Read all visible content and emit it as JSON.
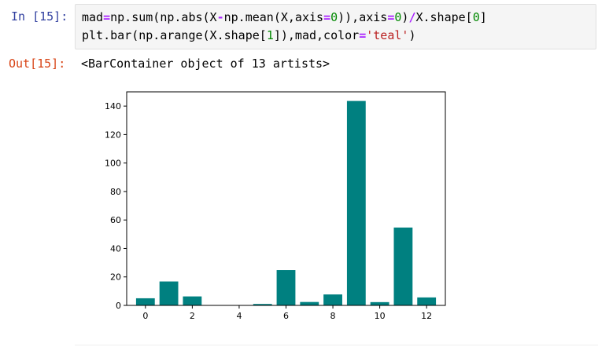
{
  "input_cell": {
    "prompt": "In [15]:",
    "code_line_1": [
      {
        "t": "mad",
        "k": "plain"
      },
      {
        "t": "=",
        "k": "op"
      },
      {
        "t": "np.sum(np.abs(X",
        "k": "plain"
      },
      {
        "t": "-",
        "k": "op"
      },
      {
        "t": "np.mean(X,axis",
        "k": "plain"
      },
      {
        "t": "=",
        "k": "op"
      },
      {
        "t": "0",
        "k": "num"
      },
      {
        "t": ")),axis",
        "k": "plain"
      },
      {
        "t": "=",
        "k": "op"
      },
      {
        "t": "0",
        "k": "num"
      },
      {
        "t": ")",
        "k": "plain"
      },
      {
        "t": "/",
        "k": "op"
      },
      {
        "t": "X.shape[",
        "k": "plain"
      },
      {
        "t": "0",
        "k": "num"
      },
      {
        "t": "]",
        "k": "plain"
      }
    ],
    "code_line_2": [
      {
        "t": "plt.bar(np.arange(X.shape[",
        "k": "plain"
      },
      {
        "t": "1",
        "k": "num"
      },
      {
        "t": "]),mad,color",
        "k": "plain"
      },
      {
        "t": "=",
        "k": "op"
      },
      {
        "t": "'teal'",
        "k": "str"
      },
      {
        "t": ")",
        "k": "plain"
      }
    ]
  },
  "output_cell": {
    "prompt": "Out[15]:",
    "text": "<BarContainer object of 13 artists>"
  },
  "colors": {
    "bar": "#008080",
    "in_prompt": "#303f9f",
    "out_prompt": "#d84315",
    "code_bg": "#f5f5f5"
  },
  "chart_data": {
    "type": "bar",
    "categories": [
      0,
      1,
      2,
      3,
      4,
      5,
      6,
      7,
      8,
      9,
      10,
      11,
      12
    ],
    "values": [
      5.0,
      16.8,
      6.3,
      0.0,
      0.1,
      1.0,
      24.8,
      2.4,
      7.7,
      143.6,
      2.3,
      54.7,
      5.6
    ],
    "xlim": [
      -0.8,
      12.8
    ],
    "ylim": [
      0,
      150
    ],
    "xticks": [
      0,
      2,
      4,
      6,
      8,
      10,
      12
    ],
    "yticks": [
      0,
      20,
      40,
      60,
      80,
      100,
      120,
      140
    ],
    "title": "",
    "xlabel": "",
    "ylabel": "",
    "grid": false,
    "legend": false
  }
}
